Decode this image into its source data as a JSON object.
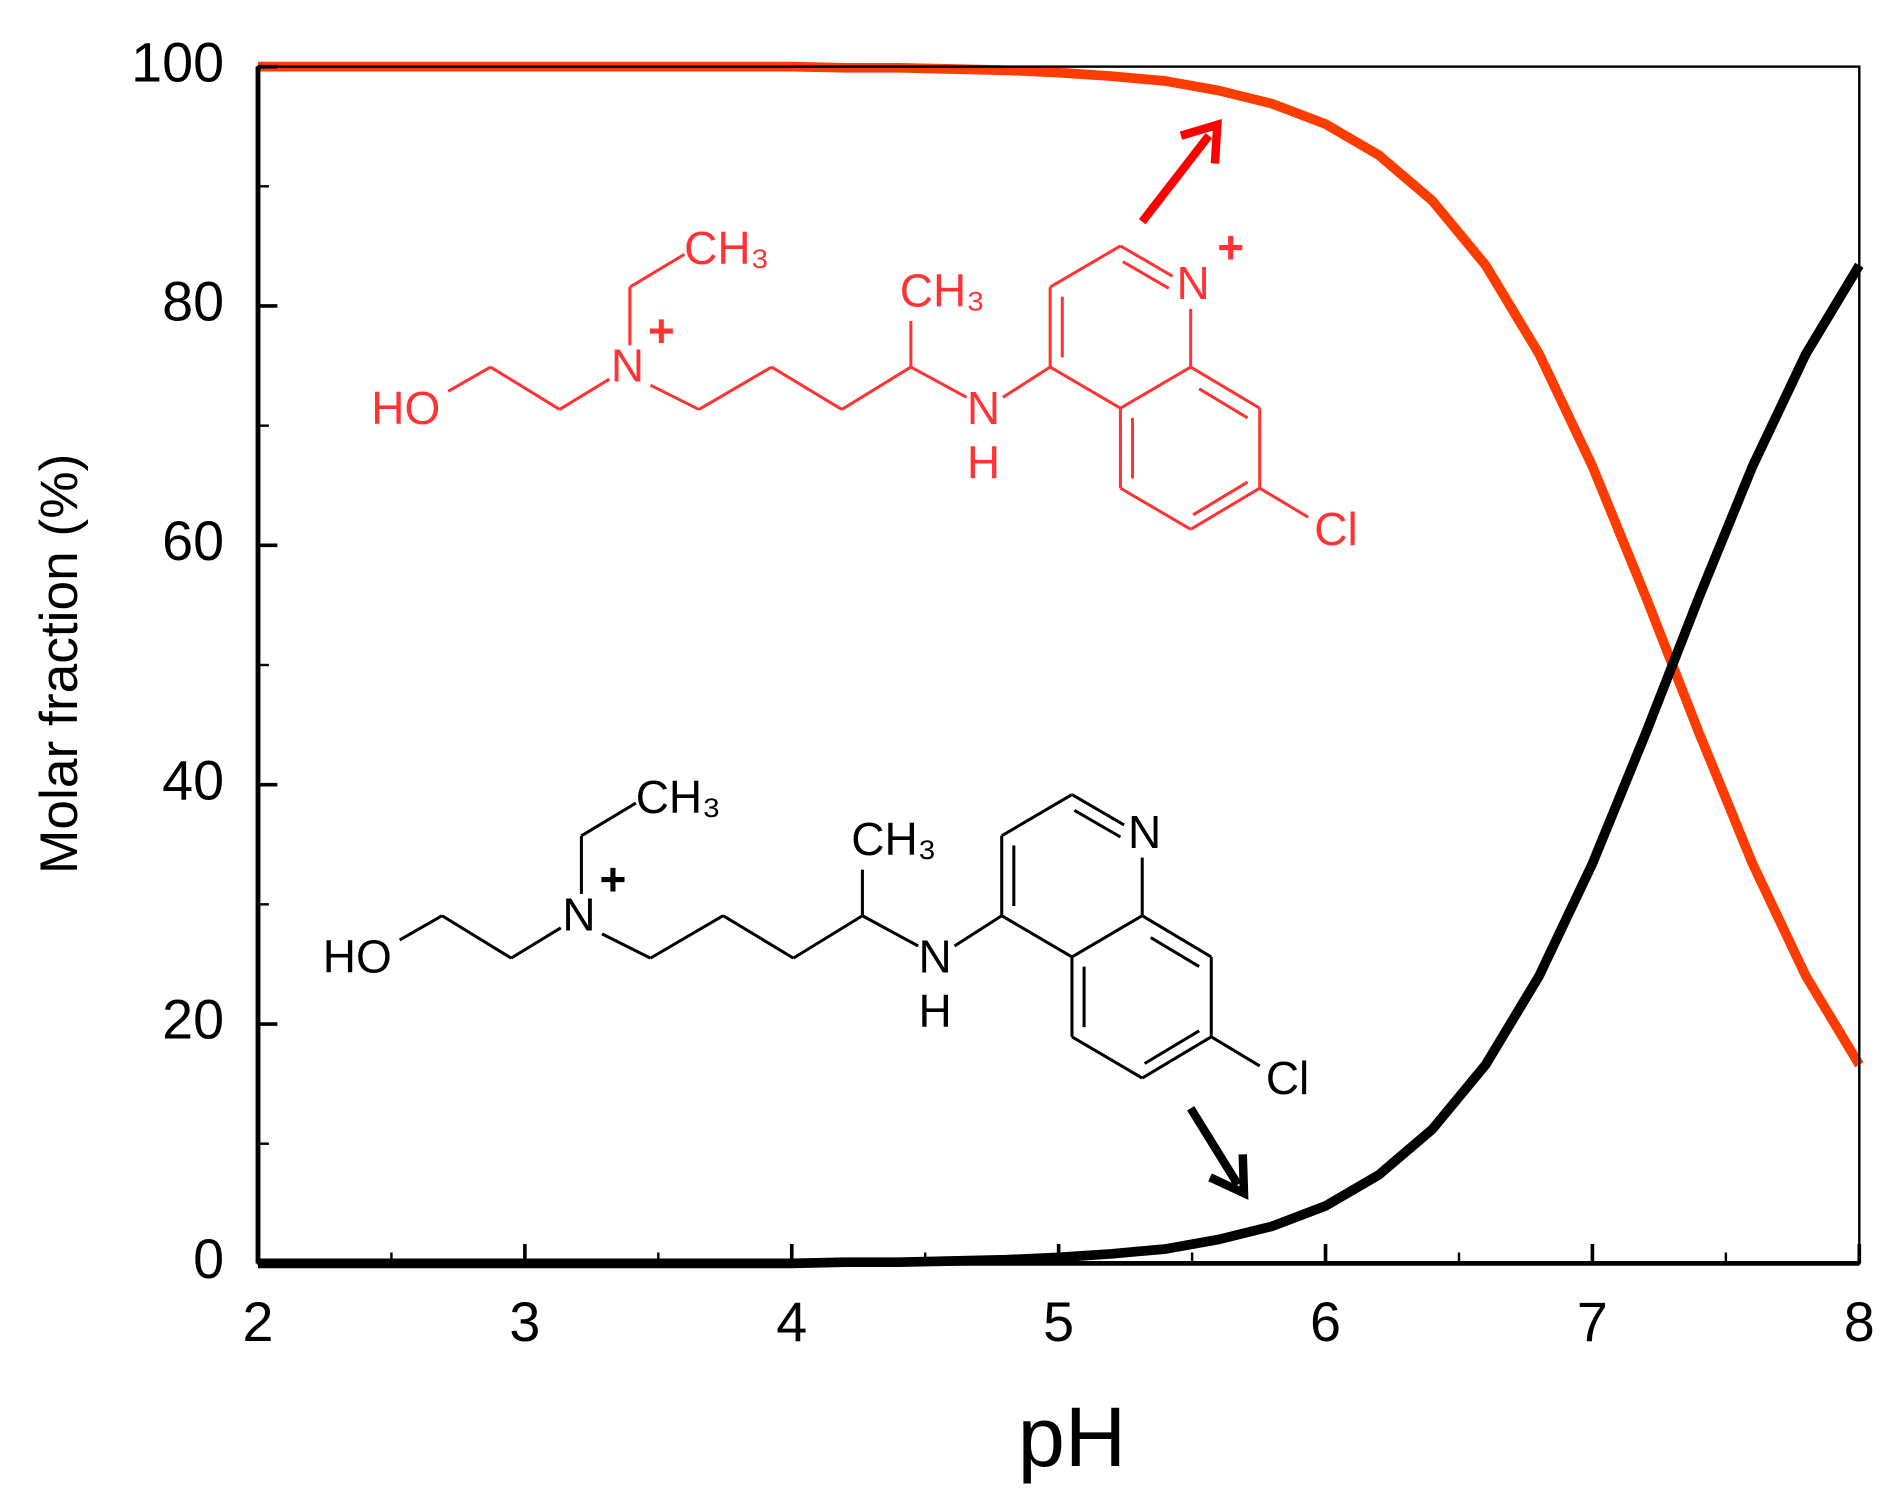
{
  "chart_data": {
    "type": "line",
    "x_label": "pH",
    "y_label": "Molar fraction (%)",
    "x": [
      2.0,
      2.2,
      2.4,
      2.6,
      2.8,
      3.0,
      3.2,
      3.4,
      3.6,
      3.8,
      4.0,
      4.2,
      4.4,
      4.6,
      4.8,
      5.0,
      5.2,
      5.4,
      5.6,
      5.8,
      6.0,
      6.2,
      6.4,
      6.6,
      6.8,
      7.0,
      7.2,
      7.4,
      7.6,
      7.8,
      8.0
    ],
    "series": [
      {
        "color": "#ff3c00",
        "values": [
          100.0,
          100.0,
          100.0,
          100.0,
          100.0,
          100.0,
          100.0,
          100.0,
          100.0,
          100.0,
          100.0,
          99.9,
          99.9,
          99.8,
          99.7,
          99.5,
          99.2,
          98.8,
          98.0,
          96.9,
          95.2,
          92.6,
          88.8,
          83.4,
          76.0,
          66.6,
          55.7,
          44.3,
          33.4,
          24.0,
          16.6
        ]
      },
      {
        "color": "#000000",
        "values": [
          0.0,
          0.0,
          0.0,
          0.0,
          0.0,
          0.0,
          0.0,
          0.0,
          0.0,
          0.0,
          0.0,
          0.1,
          0.1,
          0.2,
          0.3,
          0.5,
          0.8,
          1.2,
          2.0,
          3.1,
          4.8,
          7.4,
          11.2,
          16.6,
          24.0,
          33.4,
          44.3,
          55.7,
          66.6,
          76.0,
          83.4
        ]
      }
    ],
    "xlim": [
      2,
      8
    ],
    "xticks": [
      2,
      3,
      4,
      5,
      6,
      7,
      8
    ],
    "x_minor_ticks": [
      2.5,
      3.5,
      4.5,
      5.5,
      6.5,
      7.5
    ],
    "ylim": [
      0,
      100
    ],
    "yticks": [
      0,
      20,
      40,
      60,
      80,
      100
    ],
    "y_minor_ticks": [
      10,
      30,
      50,
      70,
      90
    ],
    "grid": false,
    "structures": [
      {
        "color": "#ff3333",
        "labels": {
          "hydroxyl": "HO",
          "amine": "N",
          "amine_charge": "+",
          "ethyl": "CH₃",
          "methyl": "CH₃",
          "amino": "N",
          "amino_h": "H",
          "ring_n": "N",
          "ring_charge": "+",
          "chloro": "Cl"
        }
      },
      {
        "color": "#000000",
        "labels": {
          "hydroxyl": "HO",
          "amine": "N",
          "amine_charge": "+",
          "ethyl": "CH₃",
          "methyl": "CH₃",
          "amino": "N",
          "amino_h": "H",
          "ring_n": "N",
          "chloro": "Cl"
        }
      }
    ]
  }
}
